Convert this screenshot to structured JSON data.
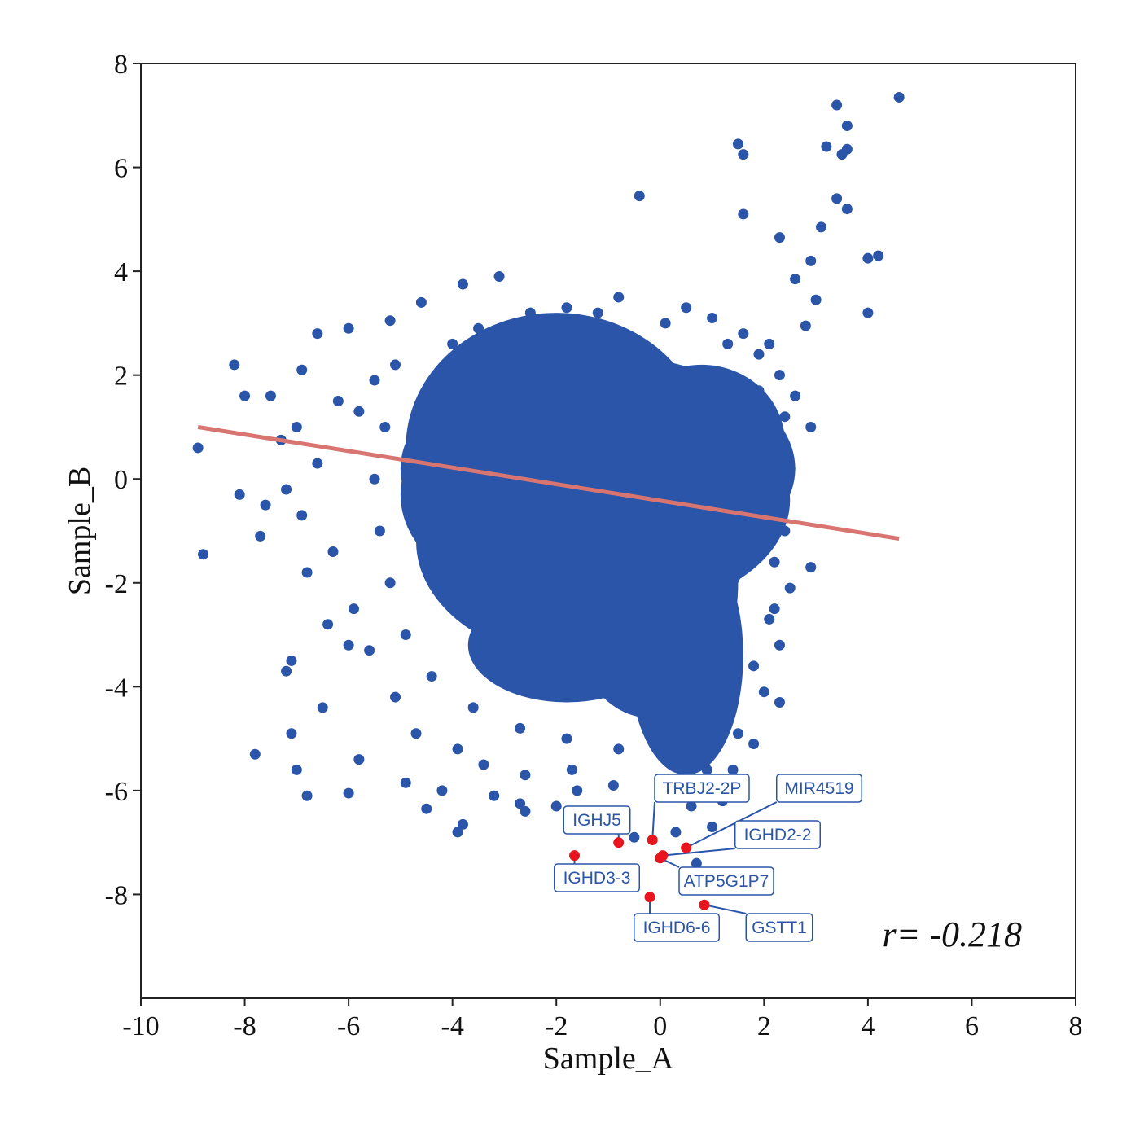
{
  "chart_data": {
    "type": "scatter",
    "xlabel": "Sample_A",
    "ylabel": "Sample_B",
    "xlim": [
      -10,
      8
    ],
    "ylim": [
      -10,
      8
    ],
    "xticks": [
      -10,
      -8,
      -6,
      -4,
      -2,
      0,
      2,
      4,
      6,
      8
    ],
    "yticks": [
      -8,
      -6,
      -4,
      -2,
      0,
      2,
      4,
      6,
      8
    ],
    "grid": false,
    "colors": {
      "points": "#2a55a8",
      "highlight": "#e8141e",
      "fit_line": "#d97570",
      "label_border": "#2a55a8"
    },
    "correlation_text": "r= -0.218",
    "fit_line": {
      "x": [
        -8.9,
        4.6
      ],
      "y": [
        1.0,
        -1.15
      ]
    },
    "points": [
      [
        -8.9,
        0.6
      ],
      [
        -8.8,
        -1.45
      ],
      [
        -8.2,
        2.2
      ],
      [
        -8.0,
        1.6
      ],
      [
        -7.8,
        -5.3
      ],
      [
        -7.1,
        -4.9
      ],
      [
        -6.8,
        -6.1
      ],
      [
        -6.0,
        -6.05
      ],
      [
        -6.6,
        2.8
      ],
      [
        -6.0,
        2.9
      ],
      [
        -5.2,
        3.05
      ],
      [
        -4.6,
        3.4
      ],
      [
        -3.8,
        3.75
      ],
      [
        -3.1,
        3.9
      ],
      [
        -0.4,
        5.45
      ],
      [
        1.5,
        6.45
      ],
      [
        1.6,
        6.25
      ],
      [
        1.6,
        5.1
      ],
      [
        3.4,
        7.2
      ],
      [
        3.6,
        6.8
      ],
      [
        3.2,
        6.4
      ],
      [
        3.5,
        6.25
      ],
      [
        3.6,
        6.35
      ],
      [
        4.6,
        7.35
      ],
      [
        3.4,
        5.4
      ],
      [
        3.6,
        5.2
      ],
      [
        3.1,
        4.85
      ],
      [
        4.0,
        4.25
      ],
      [
        4.2,
        4.3
      ],
      [
        4.0,
        3.2
      ],
      [
        2.3,
        4.65
      ],
      [
        2.6,
        3.85
      ],
      [
        3.0,
        3.45
      ],
      [
        2.9,
        4.2
      ],
      [
        2.8,
        2.95
      ],
      [
        2.9,
        1.0
      ],
      [
        2.6,
        1.6
      ],
      [
        2.9,
        -1.7
      ],
      [
        2.3,
        -4.3
      ],
      [
        2.2,
        -2.5
      ],
      [
        1.4,
        -5.6
      ],
      [
        1.8,
        -5.1
      ],
      [
        -3.9,
        -6.8
      ],
      [
        -3.8,
        -6.65
      ],
      [
        -4.5,
        -6.35
      ],
      [
        -2.6,
        -6.4
      ],
      [
        -2.7,
        -6.25
      ],
      [
        -4.9,
        -5.85
      ],
      [
        -5.8,
        -5.4
      ],
      [
        -7.0,
        -5.6
      ],
      [
        -7.1,
        -3.5
      ],
      [
        -7.2,
        -3.7
      ],
      [
        -6.0,
        -3.2
      ],
      [
        -6.5,
        -4.4
      ],
      [
        -7.3,
        0.75
      ],
      [
        -7.7,
        -1.1
      ],
      [
        -8.1,
        -0.3
      ],
      [
        -6.9,
        2.1
      ],
      [
        -7.5,
        1.6
      ],
      [
        -5.8,
        1.3
      ],
      [
        -4.2,
        -6.0
      ],
      [
        -3.2,
        -6.1
      ],
      [
        -2.0,
        -6.3
      ],
      [
        -1.3,
        -6.4
      ],
      [
        -0.5,
        -6.9
      ],
      [
        0.3,
        -6.8
      ],
      [
        0.7,
        -7.4
      ],
      [
        1.0,
        -6.7
      ],
      [
        -0.7,
        -6.5
      ],
      [
        1.2,
        -6.2
      ],
      [
        0.6,
        -6.3
      ],
      [
        -1.6,
        -6.0
      ],
      [
        -3.0,
        2.8
      ],
      [
        -2.5,
        3.2
      ],
      [
        -1.8,
        3.3
      ],
      [
        -0.8,
        3.5
      ],
      [
        0.5,
        3.3
      ],
      [
        1.0,
        3.1
      ],
      [
        1.6,
        2.8
      ],
      [
        2.1,
        2.6
      ],
      [
        -5.1,
        2.2
      ],
      [
        -5.5,
        1.9
      ],
      [
        -6.2,
        1.5
      ],
      [
        -7.0,
        1.0
      ],
      [
        -6.6,
        0.3
      ],
      [
        -7.2,
        -0.2
      ],
      [
        -6.9,
        -0.7
      ],
      [
        -7.6,
        -0.5
      ],
      [
        -6.3,
        -1.4
      ],
      [
        -6.8,
        -1.8
      ],
      [
        -5.9,
        -2.5
      ],
      [
        -6.4,
        -2.8
      ],
      [
        -5.6,
        -3.3
      ],
      [
        -5.1,
        -4.2
      ],
      [
        -4.7,
        -4.9
      ],
      [
        -3.9,
        -5.2
      ],
      [
        -3.4,
        -5.5
      ],
      [
        -2.6,
        -5.7
      ],
      [
        -1.7,
        -5.6
      ],
      [
        -0.9,
        -5.9
      ],
      [
        0.1,
        -5.8
      ],
      [
        0.9,
        -5.6
      ],
      [
        1.5,
        -4.9
      ],
      [
        2.0,
        -4.1
      ],
      [
        2.3,
        -3.2
      ],
      [
        2.5,
        -2.1
      ],
      [
        2.4,
        -1.0
      ],
      [
        2.5,
        0.2
      ],
      [
        2.4,
        1.2
      ],
      [
        2.3,
        2.0
      ],
      [
        1.9,
        2.4
      ],
      [
        -4.0,
        2.6
      ],
      [
        -3.5,
        2.9
      ],
      [
        -2.2,
        3.0
      ],
      [
        -1.2,
        3.2
      ],
      [
        0.1,
        3.0
      ],
      [
        1.3,
        2.6
      ],
      [
        -5.3,
        1.0
      ],
      [
        -5.5,
        0.0
      ],
      [
        -5.4,
        -1.0
      ],
      [
        -5.2,
        -2.0
      ],
      [
        -4.9,
        -3.0
      ],
      [
        -4.4,
        -3.8
      ],
      [
        -3.6,
        -4.4
      ],
      [
        -2.7,
        -4.8
      ],
      [
        -1.8,
        -5.0
      ],
      [
        -0.8,
        -5.2
      ],
      [
        0.3,
        -5.0
      ],
      [
        1.2,
        -4.4
      ],
      [
        1.8,
        -3.6
      ],
      [
        2.1,
        -2.7
      ],
      [
        2.2,
        -1.6
      ],
      [
        2.2,
        -0.4
      ],
      [
        2.1,
        0.8
      ],
      [
        1.9,
        1.7
      ]
    ],
    "cloud_ellipses": [
      {
        "cx": -1.2,
        "cy": 0.2,
        "rx": 3.8,
        "ry": 2.2
      },
      {
        "cx": -2.0,
        "cy": 0.6,
        "rx": 2.9,
        "ry": 2.6
      },
      {
        "cx": -0.6,
        "cy": -0.4,
        "rx": 3.1,
        "ry": 2.1
      },
      {
        "cx": -1.5,
        "cy": -1.2,
        "rx": 3.2,
        "ry": 2.3
      },
      {
        "cx": -0.2,
        "cy": -2.0,
        "rx": 1.7,
        "ry": 2.6
      },
      {
        "cx": 0.5,
        "cy": -3.4,
        "rx": 1.1,
        "ry": 2.3
      },
      {
        "cx": -1.8,
        "cy": -3.2,
        "rx": 1.9,
        "ry": 1.1
      },
      {
        "cx": -3.1,
        "cy": -0.3,
        "rx": 1.9,
        "ry": 1.7
      },
      {
        "cx": 0.8,
        "cy": 0.7,
        "rx": 1.6,
        "ry": 1.5
      }
    ],
    "highlighted": [
      {
        "gene": "IGHJ5",
        "x": -0.8,
        "y": -7.0
      },
      {
        "gene": "TRBJ2-2P",
        "x": -0.15,
        "y": -6.95
      },
      {
        "gene": "MIR4519",
        "x": 0.5,
        "y": -7.1
      },
      {
        "gene": "IGHD2-2",
        "x": 0.05,
        "y": -7.25
      },
      {
        "gene": "ATP5G1P7",
        "x": 0.0,
        "y": -7.3
      },
      {
        "gene": "IGHD3-3",
        "x": -1.65,
        "y": -7.25
      },
      {
        "gene": "IGHD6-6",
        "x": -0.2,
        "y": -8.05
      },
      {
        "gene": "GSTT1",
        "x": 0.85,
        "y": -8.2
      }
    ]
  }
}
